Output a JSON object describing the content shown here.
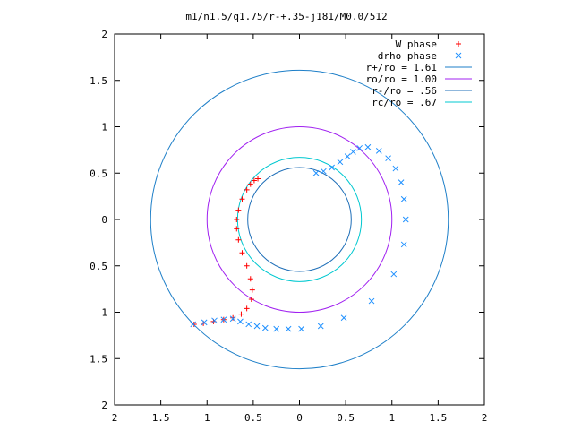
{
  "chart_data": {
    "type": "scatter",
    "title": "m1/n1.5/q1.75/r-+.35-j181/M0.0/512",
    "xlabel": "",
    "ylabel": "",
    "xlim": [
      -2,
      2
    ],
    "ylim": [
      -2,
      2
    ],
    "grid": false,
    "legend_position": "top-right",
    "x_ticks": [
      {
        "value": -2,
        "label": "2"
      },
      {
        "value": -1.5,
        "label": "1.5"
      },
      {
        "value": -1,
        "label": "1"
      },
      {
        "value": -0.5,
        "label": "0.5"
      },
      {
        "value": 0,
        "label": "0"
      },
      {
        "value": 0.5,
        "label": "0.5"
      },
      {
        "value": 1,
        "label": "1"
      },
      {
        "value": 1.5,
        "label": "1.5"
      },
      {
        "value": 2,
        "label": "2"
      }
    ],
    "y_ticks": [
      {
        "value": 2,
        "label": "2"
      },
      {
        "value": 1.5,
        "label": "1.5"
      },
      {
        "value": 1,
        "label": "1"
      },
      {
        "value": 0.5,
        "label": "0.5"
      },
      {
        "value": 0,
        "label": "0"
      },
      {
        "value": -0.5,
        "label": "0.5"
      },
      {
        "value": -1,
        "label": "1"
      },
      {
        "value": -1.5,
        "label": "1.5"
      },
      {
        "value": -2,
        "label": "2"
      }
    ],
    "series": [
      {
        "name": "W phase",
        "marker": "plus",
        "color": "#ff0000",
        "points": [
          [
            -0.45,
            0.44
          ],
          [
            -0.49,
            0.42
          ],
          [
            -0.53,
            0.38
          ],
          [
            -0.57,
            0.32
          ],
          [
            -0.62,
            0.22
          ],
          [
            -0.66,
            0.1
          ],
          [
            -0.68,
            0.0
          ],
          [
            -0.68,
            -0.1
          ],
          [
            -0.66,
            -0.22
          ],
          [
            -0.62,
            -0.36
          ],
          [
            -0.57,
            -0.5
          ],
          [
            -0.53,
            -0.64
          ],
          [
            -0.51,
            -0.76
          ],
          [
            -0.52,
            -0.86
          ],
          [
            -0.57,
            -0.96
          ],
          [
            -0.63,
            -1.02
          ],
          [
            -0.72,
            -1.06
          ],
          [
            -0.82,
            -1.08
          ],
          [
            -0.93,
            -1.1
          ],
          [
            -1.04,
            -1.12
          ],
          [
            -1.14,
            -1.13
          ]
        ]
      },
      {
        "name": "drho phase",
        "marker": "cross",
        "color": "#1e90ff",
        "points": [
          [
            -1.15,
            -1.13
          ],
          [
            -1.03,
            -1.11
          ],
          [
            -0.92,
            -1.09
          ],
          [
            -0.82,
            -1.08
          ],
          [
            -0.72,
            -1.07
          ],
          [
            -0.64,
            -1.1
          ],
          [
            -0.55,
            -1.13
          ],
          [
            -0.46,
            -1.15
          ],
          [
            -0.37,
            -1.17
          ],
          [
            -0.25,
            -1.18
          ],
          [
            -0.12,
            -1.18
          ],
          [
            0.02,
            -1.18
          ],
          [
            0.23,
            -1.15
          ],
          [
            0.48,
            -1.06
          ],
          [
            0.78,
            -0.88
          ],
          [
            1.02,
            -0.59
          ],
          [
            1.13,
            -0.27
          ],
          [
            1.15,
            0.0
          ],
          [
            1.13,
            0.22
          ],
          [
            1.1,
            0.4
          ],
          [
            1.04,
            0.55
          ],
          [
            0.96,
            0.66
          ],
          [
            0.86,
            0.74
          ],
          [
            0.74,
            0.78
          ],
          [
            0.65,
            0.77
          ],
          [
            0.58,
            0.73
          ],
          [
            0.52,
            0.68
          ],
          [
            0.44,
            0.62
          ],
          [
            0.35,
            0.56
          ],
          [
            0.26,
            0.52
          ],
          [
            0.18,
            0.5
          ]
        ]
      }
    ],
    "circles": [
      {
        "name": "r+/ro = 1.61",
        "radius": 1.61,
        "color": "#1e7fc8"
      },
      {
        "name": "ro/ro = 1.00",
        "radius": 1.0,
        "color": "#a020f0"
      },
      {
        "name": "r-/ro = .56",
        "radius": 0.56,
        "color": "#1f6fb8"
      },
      {
        "name": "rc/ro = .67",
        "radius": 0.67,
        "color": "#00c8d0"
      }
    ]
  }
}
